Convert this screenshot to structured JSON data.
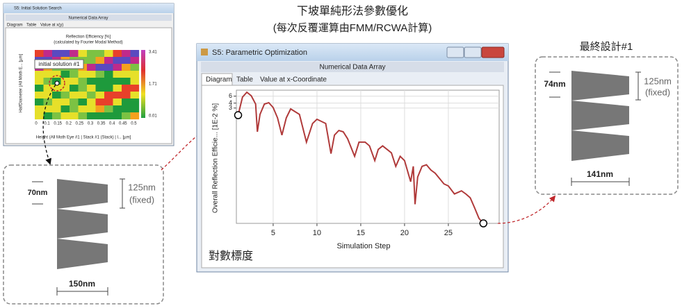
{
  "heading": {
    "line1": "下坡單純形法參數優化",
    "line2": "(每次反覆運算由FMM/RCWA計算)"
  },
  "initial_window": {
    "title": "S5: Initial Solution Search",
    "subtitle": "Numerical Data Array",
    "tabs": [
      "Diagram",
      "Table",
      "Value at x(y)"
    ],
    "chart_title": "Reflection Efficiency [%]",
    "chart_subtitle": "(calculated by Fourier Modal Method)",
    "y_label": "HalfDiameter (All Moth E... [µm]",
    "x_label": "Height (All Moth Eye #1 | Stack #1 (Stack) | l... [µm]",
    "x_ticks": [
      "0",
      "0.1",
      "0.15",
      "0.2",
      "0.25",
      "0.3",
      "0.35",
      "0.4",
      "0.45",
      "0.5"
    ],
    "colorbar_ticks": [
      "3.41",
      "1.71",
      "0.01"
    ],
    "annotation": "initial solution #1"
  },
  "initial_design": {
    "top_width": "70nm",
    "height": "125nm",
    "height_note": "(fixed)",
    "base_width": "150nm"
  },
  "optimization_window": {
    "title": "S5: Parametric Optimization",
    "subtitle": "Numerical Data Array",
    "tabs": [
      "Diagram",
      "Table",
      "Value at x-Coordinate"
    ],
    "chart": {
      "type": "line",
      "x_label": "Simulation Step",
      "y_label": "Overall Reflection Efficie... [1E-2 %]",
      "x": [
        1,
        1.5,
        2,
        2.5,
        3,
        3.2,
        3.5,
        4,
        4.5,
        5,
        5.5,
        6,
        6.5,
        7,
        8,
        8.8,
        9.5,
        10,
        11,
        11.6,
        12,
        12.5,
        13,
        13.5,
        14.3,
        14.8,
        15.5,
        16,
        16.6,
        17,
        17.5,
        18,
        18.5,
        19,
        19.5,
        20,
        20.7,
        21,
        21.2,
        21.5,
        22,
        22.5,
        23,
        23.5,
        24.5,
        25,
        25.7,
        26.5,
        27,
        27.5,
        28,
        28.5,
        29
      ],
      "values": [
        1.98,
        5.68,
        7.52,
        6.15,
        3.78,
        0.75,
        2.07,
        3.78,
        4.1,
        3.09,
        1.69,
        0.62,
        1.69,
        2.85,
        2.07,
        0.41,
        1.22,
        1.56,
        1.22,
        0.21,
        0.62,
        0.81,
        0.75,
        0.5,
        0.18,
        0.41,
        0.41,
        0.33,
        0.14,
        0.27,
        0.33,
        0.27,
        0.22,
        0.1,
        0.18,
        0.14,
        0.041,
        0.1,
        0.011,
        0.054,
        0.1,
        0.11,
        0.081,
        0.067,
        0.036,
        0.032,
        0.02,
        0.024,
        0.02,
        0.016,
        0.0089,
        0.0048,
        0.0036
      ],
      "color": "#b03a3a",
      "xlim": [
        0.8,
        30.8
      ],
      "ylim": [
        0.0036,
        8.5
      ],
      "xticks": [
        5,
        10,
        15,
        20,
        25
      ],
      "yticks": [
        3,
        4,
        6
      ],
      "log_y": true,
      "grid": true
    },
    "annotation": "對數標度"
  },
  "final_design": {
    "title": "最終設計#1",
    "top_width": "74nm",
    "height": "125nm",
    "height_note": "(fixed)",
    "base_width": "141nm"
  }
}
